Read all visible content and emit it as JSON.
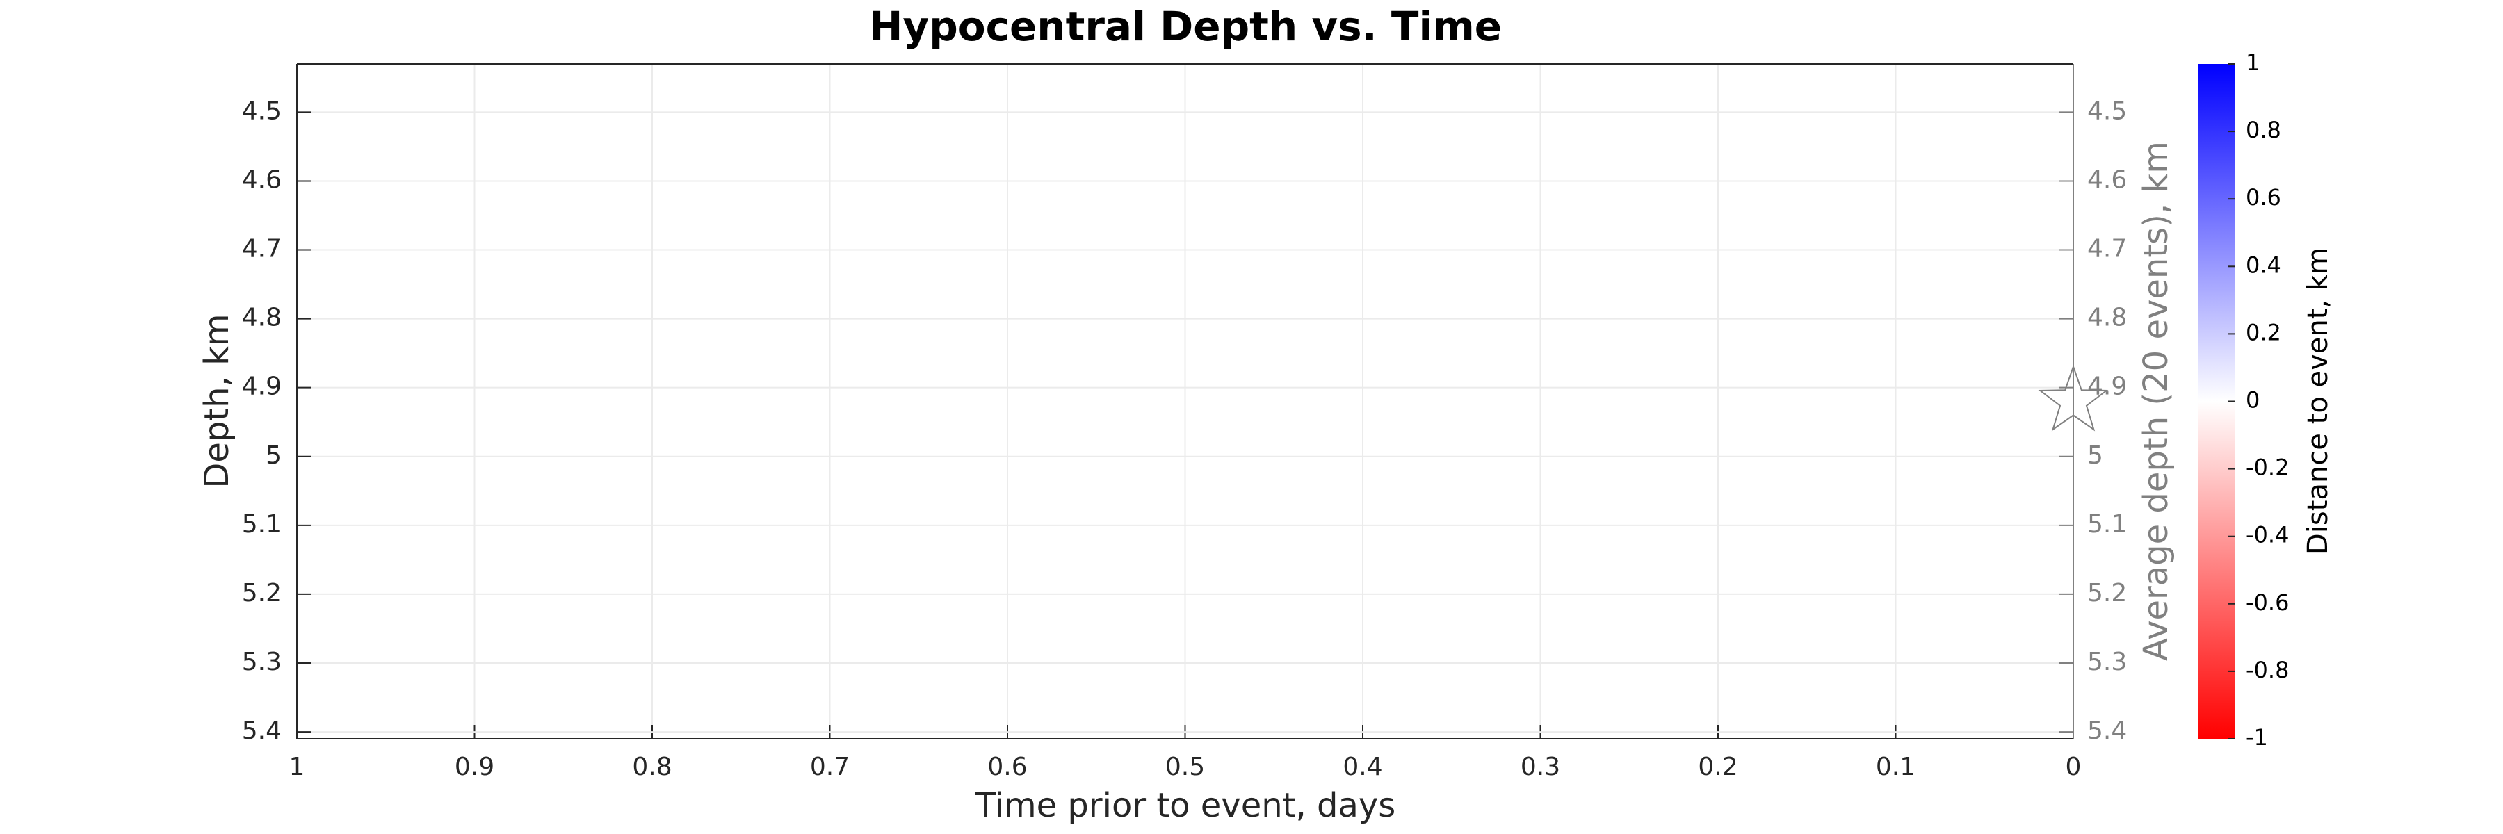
{
  "chart_data": {
    "type": "scatter",
    "title": "Hypocentral Depth vs. Time",
    "xlabel": "Time prior to event, days",
    "ylabel": "Depth, km",
    "y2label": "Average depth (20 events), km",
    "xlim": [
      1,
      0
    ],
    "xticks": [
      1,
      0.9,
      0.8,
      0.7,
      0.6,
      0.5,
      0.4,
      0.3,
      0.2,
      0.1,
      0
    ],
    "ylim": [
      5.41,
      4.43
    ],
    "yticks": [
      4.5,
      4.6,
      4.7,
      4.8,
      4.9,
      5,
      5.1,
      5.2,
      5.3,
      5.4
    ],
    "y2lim": [
      5.41,
      4.43
    ],
    "y2ticks": [
      4.5,
      4.6,
      4.7,
      4.8,
      4.9,
      5,
      5.1,
      5.2,
      5.3,
      5.4
    ],
    "grid": true,
    "series": [
      {
        "color": "#808080",
        "marker": "star",
        "x": [
          0
        ],
        "values": [
          4.92
        ]
      }
    ],
    "colorbar": {
      "label": "Distance to event, km",
      "lim": [
        -1,
        1
      ],
      "ticks": [
        -1,
        -0.8,
        -0.6,
        -0.4,
        -0.2,
        0,
        0.2,
        0.4,
        0.6,
        0.8,
        1
      ],
      "colors": [
        "#ff0000",
        "#ffffff",
        "#0000ff"
      ]
    }
  }
}
